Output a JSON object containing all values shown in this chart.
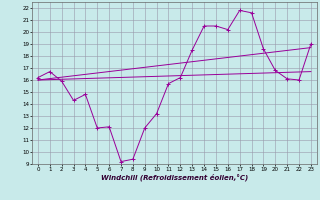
{
  "bg_color": "#c8eaea",
  "line_color": "#990099",
  "grid_color": "#9999aa",
  "xlim": [
    -0.5,
    23.5
  ],
  "ylim": [
    9,
    22.5
  ],
  "xticks": [
    0,
    1,
    2,
    3,
    4,
    5,
    6,
    7,
    8,
    9,
    10,
    11,
    12,
    13,
    14,
    15,
    16,
    17,
    18,
    19,
    20,
    21,
    22,
    23
  ],
  "yticks": [
    9,
    10,
    11,
    12,
    13,
    14,
    15,
    16,
    17,
    18,
    19,
    20,
    21,
    22
  ],
  "xlabel": "Windchill (Refroidissement éolien,°C)",
  "line1_x": [
    0,
    1,
    2,
    3,
    4,
    5,
    6,
    7,
    8,
    9,
    10,
    11,
    12,
    13,
    14,
    15,
    16,
    17,
    18,
    19,
    20,
    21,
    22,
    23
  ],
  "line1_y": [
    16.2,
    16.7,
    15.9,
    14.3,
    14.8,
    12.0,
    12.1,
    9.2,
    9.4,
    12.0,
    13.2,
    15.7,
    16.2,
    18.5,
    20.5,
    20.5,
    20.2,
    21.8,
    21.6,
    18.6,
    16.8,
    16.1,
    16.0,
    19.0
  ],
  "line2_x": [
    0,
    23
  ],
  "line2_y": [
    16.0,
    18.7
  ],
  "line3_x": [
    0,
    23
  ],
  "line3_y": [
    16.0,
    16.7
  ],
  "tick_fontsize": 4.0,
  "xlabel_fontsize": 5.0
}
